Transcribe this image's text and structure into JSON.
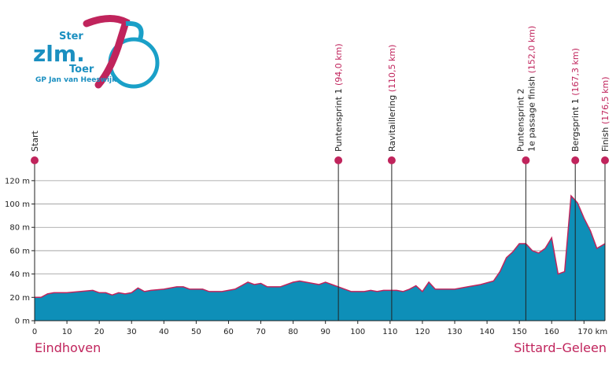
{
  "logo": {
    "line1": "Ster",
    "line2": "zlm.",
    "line3": "Toer",
    "subtitle": "GP Jan van Heeswijk"
  },
  "chart_data": {
    "type": "area",
    "x": [
      0,
      2,
      4,
      6,
      10,
      14,
      18,
      20,
      22,
      24,
      26,
      28,
      30,
      32,
      34,
      36,
      40,
      44,
      46,
      48,
      52,
      54,
      58,
      62,
      64,
      66,
      68,
      70,
      72,
      76,
      80,
      82,
      84,
      86,
      88,
      90,
      92,
      94,
      96,
      98,
      102,
      104,
      106,
      108,
      110,
      112,
      114,
      116,
      118,
      120,
      122,
      124,
      126,
      130,
      134,
      138,
      142,
      144,
      146,
      148,
      150,
      152,
      154,
      156,
      158,
      160,
      162,
      164,
      166,
      168,
      170,
      172,
      174,
      176.5
    ],
    "series": [
      {
        "color": "#0e8fb8",
        "line_color": "#c0245c",
        "values": [
          20,
          20,
          23,
          24,
          24,
          25,
          26,
          24,
          24,
          22,
          24,
          23,
          24,
          28,
          25,
          26,
          27,
          29,
          29,
          27,
          27,
          25,
          25,
          27,
          30,
          33,
          31,
          32,
          29,
          29,
          33,
          34,
          33,
          32,
          31,
          33,
          31,
          29,
          27,
          25,
          25,
          26,
          25,
          26,
          26,
          26,
          25,
          27,
          30,
          25,
          33,
          27,
          27,
          27,
          29,
          31,
          34,
          42,
          54,
          59,
          66,
          66,
          60,
          58,
          62,
          71,
          40,
          42,
          107,
          101,
          88,
          77,
          62,
          66
        ]
      }
    ],
    "xlim": [
      0,
      176.5
    ],
    "xticks": [
      0,
      10,
      20,
      30,
      40,
      50,
      60,
      70,
      80,
      90,
      100,
      110,
      120,
      130,
      140,
      150,
      160,
      {
        "value": 170,
        "label": "170 km"
      }
    ],
    "ylim": [
      0,
      130
    ],
    "yticks": [
      {
        "value": 0,
        "label": "0 m"
      },
      {
        "value": 20,
        "label": "20 m"
      },
      {
        "value": 40,
        "label": "40 m"
      },
      {
        "value": 60,
        "label": "60 m"
      },
      {
        "value": 80,
        "label": "80 m"
      },
      {
        "value": 100,
        "label": "100 m"
      },
      {
        "value": 120,
        "label": "120 m"
      }
    ],
    "grid": true,
    "start_city": "Eindhoven",
    "finish_city": "Sittard–Geleen",
    "markers": [
      {
        "km": 0,
        "lines": [
          "Start"
        ]
      },
      {
        "km": 94.0,
        "lines": [
          "Puntensprint 1"
        ],
        "km_label": "(94,0 km)"
      },
      {
        "km": 110.5,
        "lines": [
          "Ravitaillering"
        ],
        "km_label": "(110,5 km)"
      },
      {
        "km": 152.0,
        "lines": [
          "Puntensprint 2",
          "1e passage finish"
        ],
        "km_label": "(152,0 km)"
      },
      {
        "km": 167.3,
        "lines": [
          "Bergsprint 1"
        ],
        "km_label": "(167,3 km)"
      },
      {
        "km": 176.5,
        "lines": [
          "Finish"
        ],
        "km_label": "(176,5 km)"
      }
    ]
  }
}
